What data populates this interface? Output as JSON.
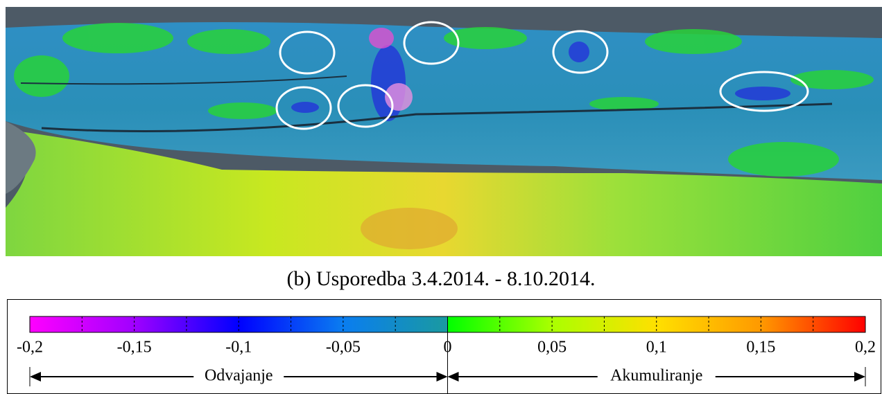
{
  "figure": {
    "caption": "(b) Usporedba 3.4.2014. - 8.10.2014.",
    "colorbar": {
      "lim": [
        -0.2,
        0.2
      ],
      "ticks": [
        {
          "value": -0.2,
          "label": "-0,2"
        },
        {
          "value": -0.15,
          "label": "-0,15"
        },
        {
          "value": -0.1,
          "label": "-0,1"
        },
        {
          "value": -0.05,
          "label": "-0,05"
        },
        0,
        {
          "value": 0.05,
          "label": "0,05"
        },
        {
          "value": 0.1,
          "label": "0,1"
        },
        {
          "value": 0.15,
          "label": "0,15"
        },
        {
          "value": 0.2,
          "label": "0,2"
        }
      ],
      "minor_ticks": [
        -0.175,
        -0.125,
        -0.075,
        -0.025,
        0.025,
        0.075,
        0.125,
        0.175
      ],
      "left_label": "Odvajanje",
      "right_label": "Akumuliranje"
    }
  }
}
